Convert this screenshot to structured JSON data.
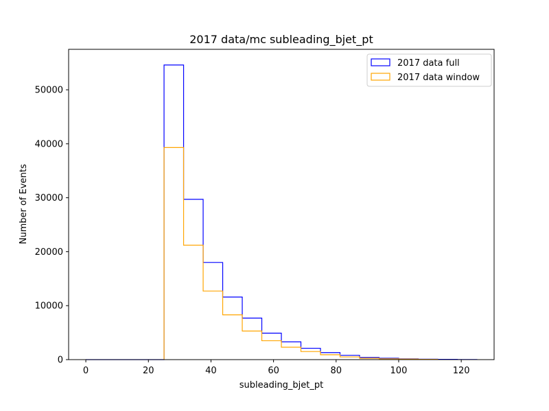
{
  "chart_data": {
    "type": "histogram",
    "title": "2017 data/mc subleading_bjet_pt",
    "xlabel": "subleading_bjet_pt",
    "ylabel": "Number of Events",
    "xlim": [
      -5.5,
      130.5
    ],
    "ylim": [
      0,
      57500
    ],
    "xticks": [
      0,
      20,
      40,
      60,
      80,
      100,
      120
    ],
    "yticks": [
      0,
      10000,
      20000,
      30000,
      40000,
      50000
    ],
    "grid": false,
    "legend_position": "top-right",
    "series": [
      {
        "name": "2017 data full",
        "color": "#0000ff",
        "bin_edges": [
          0,
          6.25,
          12.5,
          18.75,
          25,
          31.25,
          37.5,
          43.75,
          50,
          56.25,
          62.5,
          68.75,
          75,
          81.25,
          87.5,
          93.75,
          100,
          106.25,
          112.5,
          118.75,
          125
        ],
        "counts": [
          0,
          0,
          0,
          0,
          54600,
          29700,
          18000,
          11600,
          7700,
          4900,
          3300,
          2100,
          1300,
          800,
          400,
          250,
          150,
          80,
          50,
          20
        ]
      },
      {
        "name": "2017 data window",
        "color": "#ffa500",
        "bin_edges": [
          25,
          31.25,
          37.5,
          43.75,
          50,
          56.25,
          62.5,
          68.75,
          75,
          81.25,
          87.5,
          93.75,
          100,
          106.25,
          112.5
        ],
        "counts": [
          39300,
          21200,
          12700,
          8300,
          5300,
          3500,
          2300,
          1500,
          900,
          500,
          250,
          150,
          100,
          50
        ]
      }
    ]
  }
}
